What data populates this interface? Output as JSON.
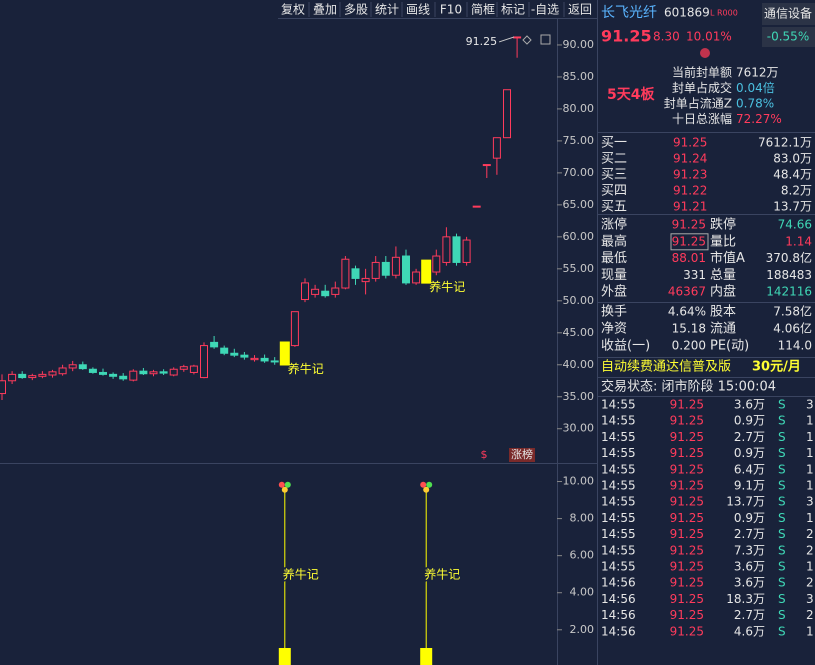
{
  "toolbar": [
    "复权",
    "叠加",
    "多股",
    "统计",
    "画线",
    "F10",
    "简框",
    "标记",
    "-自选",
    "返回"
  ],
  "chart_data": [
    {
      "type": "candlestick",
      "candles": [
        [
          35.5,
          38.5,
          34.5,
          37.5
        ],
        [
          37.5,
          39,
          37,
          38.5
        ],
        [
          38.5,
          39,
          37.8,
          38
        ],
        [
          38,
          38.6,
          37.6,
          38.3
        ],
        [
          38.2,
          39,
          37.9,
          38.5
        ],
        [
          38.4,
          39.2,
          38,
          38.9
        ],
        [
          38.6,
          40,
          38.3,
          39.5
        ],
        [
          39.5,
          40.6,
          39,
          40
        ],
        [
          40,
          40.5,
          39.2,
          39.4
        ],
        [
          39.3,
          39.6,
          38.6,
          38.8
        ],
        [
          38.8,
          39.4,
          38.3,
          38.5
        ],
        [
          38.5,
          38.8,
          37.8,
          38.2
        ],
        [
          38.2,
          38.7,
          37.5,
          37.8
        ],
        [
          37.6,
          39.3,
          37.4,
          39
        ],
        [
          39,
          39.5,
          38.4,
          38.6
        ],
        [
          38.6,
          39.2,
          38.2,
          38.9
        ],
        [
          38.9,
          39.3,
          38.4,
          38.7
        ],
        [
          38.4,
          39.6,
          38.2,
          39.3
        ],
        [
          39.3,
          40,
          38.9,
          39.7
        ],
        [
          38.8,
          40,
          38.5,
          39.8
        ],
        [
          38,
          43.5,
          37.9,
          43
        ],
        [
          43.5,
          44.5,
          42.5,
          42.8
        ],
        [
          42.6,
          43,
          41.5,
          41.8
        ],
        [
          41.8,
          42.5,
          41.2,
          41.5
        ],
        [
          41.5,
          42,
          40.8,
          41.2
        ],
        [
          40.8,
          41.5,
          40.5,
          41
        ],
        [
          41,
          41.6,
          40.3,
          40.6
        ],
        [
          40.6,
          41.2,
          40,
          40.5
        ],
        [
          40.5,
          41.5,
          40.2,
          41.2
        ],
        [
          43,
          48.3,
          42.8,
          48.3
        ],
        [
          50.2,
          53.5,
          49.8,
          52.8
        ],
        [
          51,
          52.5,
          50.5,
          51.8
        ],
        [
          51.5,
          52.5,
          50.5,
          50.8
        ],
        [
          51,
          53,
          50.5,
          52
        ],
        [
          52,
          57,
          51.8,
          56.5
        ],
        [
          55,
          55.5,
          52.5,
          53.5
        ],
        [
          53,
          55,
          51,
          53.5
        ],
        [
          53.5,
          57,
          53,
          56
        ],
        [
          56,
          57,
          53.5,
          54
        ],
        [
          54,
          58.5,
          53.5,
          56.8
        ],
        [
          57,
          58,
          52.5,
          52.8
        ],
        [
          52.8,
          55,
          52.5,
          54.5
        ],
        [
          54.5,
          55.5,
          53,
          53.5
        ],
        [
          54.5,
          58,
          54,
          57
        ],
        [
          56,
          61.5,
          55.5,
          60
        ],
        [
          60,
          60.5,
          55.5,
          56
        ],
        [
          56,
          60,
          55.5,
          59.5
        ],
        [
          64.8,
          64.8,
          64.8,
          64.8
        ],
        [
          71.3,
          71.3,
          69.2,
          71.3
        ],
        [
          72.3,
          75.5,
          69.7,
          75.5
        ],
        [
          75.5,
          83,
          75.5,
          83
        ],
        [
          91.25,
          91.25,
          88,
          91.25
        ]
      ],
      "ylim": [
        24.8,
        93.9
      ],
      "yticks": [
        {
          "value": 90,
          "label": "90.00"
        },
        {
          "value": 85,
          "label": "85.00"
        },
        {
          "value": 80,
          "label": "80.00"
        },
        {
          "value": 75,
          "label": "75.00"
        },
        {
          "value": 70,
          "label": "70.00"
        },
        {
          "value": 65,
          "label": "65.00"
        },
        {
          "value": 60,
          "label": "60.00"
        },
        {
          "value": 55,
          "label": "55.00"
        },
        {
          "value": 50,
          "label": "50.00"
        },
        {
          "value": 45,
          "label": "45.00"
        },
        {
          "value": 40,
          "label": "40.00"
        },
        {
          "value": 35,
          "label": "35.00"
        },
        {
          "value": 30,
          "label": "30.00"
        }
      ],
      "max_label": "91.25",
      "badges": [
        "$",
        "涨榜"
      ],
      "up_color": "#ff3b5c",
      "down_color": "#3fd8b6"
    },
    {
      "type": "signal",
      "signal_label": "养牛记",
      "values": [
        null,
        null,
        null,
        null,
        null,
        null,
        null,
        null,
        null,
        null,
        null,
        null,
        null,
        null,
        null,
        null,
        null,
        null,
        null,
        null,
        null,
        null,
        null,
        null,
        null,
        null,
        null,
        null,
        9.5,
        null,
        null,
        null,
        null,
        null,
        null,
        null,
        null,
        null,
        null,
        null,
        null,
        null,
        9.5,
        null,
        null,
        null,
        null,
        null,
        null,
        null,
        null,
        null
      ],
      "ylim": [
        0.1,
        11
      ],
      "yticks": [
        {
          "value": 10,
          "label": "10.00"
        },
        {
          "value": 8,
          "label": "8.00"
        },
        {
          "value": 6,
          "label": "6.00"
        },
        {
          "value": 4,
          "label": "4.00"
        },
        {
          "value": 2,
          "label": "2.00"
        }
      ],
      "color": "#ffff00"
    }
  ],
  "quote": {
    "name": "长飞光纤",
    "code": "601869",
    "tag": "L R000",
    "sector": "通信设备",
    "sector_change": "-0.55%",
    "price": "91.25",
    "change": "8.30",
    "change_pct": "10.01%",
    "streak": "5天4板",
    "seal": [
      [
        "当前封单额",
        "7612万"
      ],
      [
        "封单占成交",
        "0.04倍"
      ],
      [
        "封单占流通Z",
        "0.78%"
      ],
      [
        "十日总涨幅",
        "72.27%"
      ]
    ],
    "book": [
      [
        "买一",
        "91.25",
        "7612.1万"
      ],
      [
        "买二",
        "91.24",
        "83.0万"
      ],
      [
        "买三",
        "91.23",
        "48.4万"
      ],
      [
        "买四",
        "91.22",
        "8.2万"
      ],
      [
        "买五",
        "91.21",
        "13.7万"
      ]
    ],
    "stats": [
      [
        "涨停",
        "91.25",
        "跌停",
        "74.66"
      ],
      [
        "最高",
        "91.25",
        "量比",
        "1.14"
      ],
      [
        "最低",
        "88.01",
        "市值A",
        "370.8亿"
      ],
      [
        "现量",
        "331",
        "总量",
        "188483"
      ],
      [
        "外盘",
        "46367",
        "内盘",
        "142116"
      ],
      [
        "换手",
        "4.64%",
        "股本",
        "7.58亿"
      ],
      [
        "净资",
        "15.18",
        "流通",
        "4.06亿"
      ],
      [
        "收益(一)",
        "0.200",
        "PE(动)",
        "114.0"
      ]
    ],
    "banner": [
      "自动续费通达信普及版",
      "30元/月"
    ],
    "status": "交易状态: 闭市阶段 15:00:04",
    "ticks": [
      [
        "14:55",
        "91.25",
        "3.6万",
        "S",
        "3"
      ],
      [
        "14:55",
        "91.25",
        "0.9万",
        "S",
        "1"
      ],
      [
        "14:55",
        "91.25",
        "2.7万",
        "S",
        "1"
      ],
      [
        "14:55",
        "91.25",
        "0.9万",
        "S",
        "1"
      ],
      [
        "14:55",
        "91.25",
        "6.4万",
        "S",
        "1"
      ],
      [
        "14:55",
        "91.25",
        "9.1万",
        "S",
        "1"
      ],
      [
        "14:55",
        "91.25",
        "13.7万",
        "S",
        "3"
      ],
      [
        "14:55",
        "91.25",
        "0.9万",
        "S",
        "1"
      ],
      [
        "14:55",
        "91.25",
        "2.7万",
        "S",
        "2"
      ],
      [
        "14:55",
        "91.25",
        "7.3万",
        "S",
        "2"
      ],
      [
        "14:55",
        "91.25",
        "3.6万",
        "S",
        "1"
      ],
      [
        "14:56",
        "91.25",
        "3.6万",
        "S",
        "2"
      ],
      [
        "14:56",
        "91.25",
        "18.3万",
        "S",
        "3"
      ],
      [
        "14:56",
        "91.25",
        "2.7万",
        "S",
        "2"
      ],
      [
        "14:56",
        "91.25",
        "4.6万",
        "S",
        "1"
      ]
    ]
  }
}
